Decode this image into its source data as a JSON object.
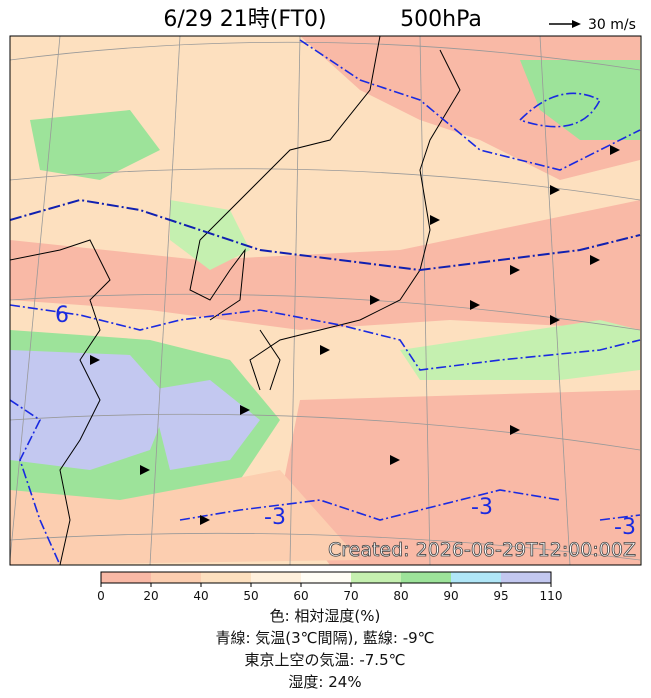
{
  "header": {
    "title": "6/29 21時(FT0)",
    "level": "500hPa",
    "wind_legend": "30 m/s"
  },
  "map": {
    "contour_labels": [
      "6",
      "-3",
      "-3",
      "-3"
    ],
    "created": "Created: 2026-06-29T12:00:00Z"
  },
  "colorbar": {
    "ticks": [
      0,
      20,
      40,
      50,
      60,
      70,
      80,
      90,
      95,
      110
    ],
    "colors": [
      "#f9b9a6",
      "#fcceb0",
      "#fde0bf",
      "#fff0dc",
      "#fffdf5",
      "#c5f0b0",
      "#9de39a",
      "#b0e6f7",
      "#c3c8f0"
    ]
  },
  "caption": [
    "色: 相対湿度(%)",
    "青線: 気温(3℃間隔), 藍線: -9℃",
    "東京上空の気温: -7.5℃",
    "湿度: 24%"
  ]
}
